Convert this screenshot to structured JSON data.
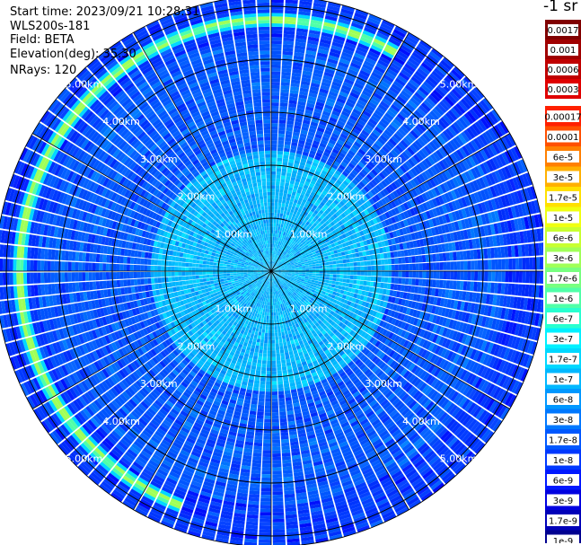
{
  "header": {
    "start_time": "Start time: 2023/09/21 10:28:31",
    "device": "WLS200s-181",
    "field": "Field: BETA",
    "elevation": "Elevation(deg): 35.30",
    "nrays": "NRays: 120"
  },
  "colorbar": {
    "unit_label": "-1 sr",
    "upper_labels": [
      "0.0017",
      "0.001",
      "0.0006",
      "0.0003"
    ],
    "upper_colors": [
      "#800000",
      "#a00000",
      "#c00000",
      "#e00000"
    ],
    "lower_labels": [
      "0.00017",
      "0.0001",
      "6e-5",
      "3e-5",
      "1.7e-5",
      "1e-5",
      "6e-6",
      "3e-6",
      "1.7e-6",
      "1e-6",
      "6e-7",
      "3e-7",
      "1.7e-7",
      "1e-7",
      "6e-8",
      "3e-8",
      "1.7e-8",
      "1e-8",
      "6e-9",
      "3e-9",
      "1.7e-9",
      "1e-9"
    ],
    "lower_colors": [
      "#ff2000",
      "#ff5000",
      "#ff8000",
      "#ffb000",
      "#ffe000",
      "#f0ff10",
      "#c8ff30",
      "#a0ff58",
      "#78ff80",
      "#50ffa8",
      "#28ffd0",
      "#00f0ff",
      "#00d8ff",
      "#00b8ff",
      "#0098ff",
      "#0078ff",
      "#0058ff",
      "#0038ff",
      "#0018ff",
      "#0000e0",
      "#0000b8",
      "#000090"
    ]
  },
  "chart_data": {
    "type": "heatmap",
    "projection": "polar-ppi",
    "field": "BETA",
    "elevation_deg": 35.3,
    "n_rays": 120,
    "range_rings_km": [
      "1.00km",
      "2.00km",
      "3.00km",
      "4.00km",
      "5.00km"
    ],
    "max_range_km": 5.2,
    "spokes": 12,
    "grid": true,
    "range_bands": [
      {
        "from_km": 0.0,
        "to_km": 2.3,
        "dominant": "1e-7"
      },
      {
        "from_km": 2.3,
        "to_km": 4.4,
        "dominant": "1.7e-8"
      },
      {
        "from_km": 4.4,
        "to_km": 5.2,
        "dominant": "1e-8"
      }
    ],
    "features": [
      {
        "description": "elevated layer",
        "range_km": 4.75,
        "azimuth_deg_from": 200,
        "azimuth_deg_to": 360,
        "value": "3e-6"
      },
      {
        "description": "elevated layer",
        "range_km": 4.75,
        "azimuth_deg_from": 0,
        "azimuth_deg_to": 30,
        "value": "3e-6"
      }
    ]
  }
}
